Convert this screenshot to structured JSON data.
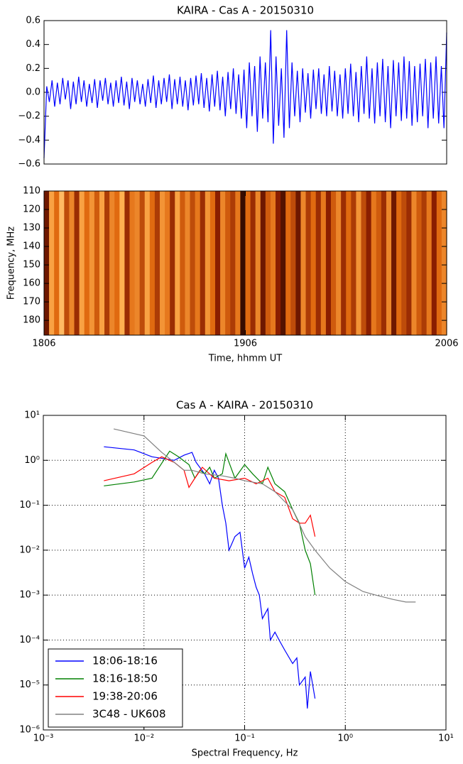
{
  "chart_data": [
    {
      "type": "line",
      "title": "KAIRA - Cas A - 20150310",
      "color": "#0000ff",
      "ylim": [
        -0.6,
        0.6
      ],
      "yticks": [
        {
          "value": -0.6,
          "label": "−0.6"
        },
        {
          "value": -0.4,
          "label": "−0.4"
        },
        {
          "value": -0.2,
          "label": "−0.2"
        },
        {
          "value": 0,
          "label": "0.0"
        },
        0.2,
        0.4,
        0.6
      ],
      "values": [
        -0.55,
        0.05,
        -0.08,
        0.1,
        -0.12,
        0.08,
        -0.1,
        0.12,
        -0.06,
        0.1,
        -0.14,
        0.09,
        -0.1,
        0.13,
        -0.08,
        0.1,
        -0.12,
        0.07,
        -0.09,
        0.11,
        -0.13,
        0.1,
        -0.07,
        0.12,
        -0.1,
        0.08,
        -0.12,
        0.1,
        -0.09,
        0.13,
        -0.11,
        0.09,
        -0.14,
        0.12,
        -0.08,
        0.1,
        -0.1,
        0.07,
        -0.12,
        0.11,
        -0.09,
        0.14,
        -0.13,
        0.1,
        -0.1,
        0.12,
        -0.08,
        0.15,
        -0.14,
        0.11,
        -0.1,
        0.13,
        -0.12,
        0.1,
        -0.15,
        0.12,
        -0.11,
        0.14,
        -0.1,
        0.16,
        -0.13,
        0.12,
        -0.16,
        0.15,
        -0.12,
        0.18,
        -0.15,
        0.13,
        -0.2,
        0.17,
        -0.14,
        0.2,
        -0.18,
        0.15,
        -0.22,
        0.19,
        -0.3,
        0.25,
        -0.2,
        0.22,
        -0.33,
        0.3,
        -0.22,
        0.25,
        -0.25,
        0.52,
        -0.43,
        0.3,
        -0.28,
        0.2,
        -0.38,
        0.52,
        -0.3,
        0.25,
        -0.2,
        0.18,
        -0.25,
        0.2,
        -0.17,
        0.16,
        -0.22,
        0.19,
        -0.14,
        0.2,
        -0.18,
        0.15,
        -0.2,
        0.22,
        -0.16,
        0.18,
        -0.2,
        0.15,
        -0.22,
        0.2,
        -0.18,
        0.24,
        -0.2,
        0.17,
        -0.25,
        0.22,
        -0.18,
        0.3,
        -0.22,
        0.2,
        -0.26,
        0.25,
        -0.2,
        0.28,
        -0.25,
        0.22,
        -0.3,
        0.27,
        -0.2,
        0.25,
        -0.24,
        0.3,
        -0.22,
        0.26,
        -0.28,
        0.22,
        -0.25,
        0.24,
        -0.2,
        0.28,
        -0.3,
        0.25,
        -0.22,
        0.3,
        -0.26,
        0.22,
        -0.3,
        0.5
      ]
    },
    {
      "type": "heatmap",
      "ylabel": "Frequency, MHz",
      "xlabel": "Time, hhmm UT",
      "colormap": [
        "#000000",
        "#8a1e00",
        "#e06a10",
        "#ffb050",
        "#ffe0b0"
      ],
      "xlim": [
        0,
        120
      ],
      "xticks": [
        {
          "value": 0,
          "label": "1806"
        },
        {
          "value": 60,
          "label": "1906"
        },
        {
          "value": 120,
          "label": "2006"
        }
      ],
      "ylim": [
        188,
        110
      ],
      "yticks": [
        110,
        120,
        130,
        140,
        150,
        160,
        170,
        180
      ],
      "values": [
        0.2,
        0.7,
        0.5,
        0.8,
        0.4,
        0.6,
        0.3,
        0.7,
        0.5,
        0.65,
        0.45,
        0.7,
        0.35,
        0.6,
        0.5,
        0.75,
        0.3,
        0.55,
        0.6,
        0.4,
        0.7,
        0.5,
        0.35,
        0.65,
        0.55,
        0.3,
        0.7,
        0.45,
        0.6,
        0.4,
        0.55,
        0.3,
        0.65,
        0.5,
        0.25,
        0.6,
        0.45,
        0.35,
        0.55,
        0.1,
        0.5,
        0.3,
        0.6,
        0.2,
        0.45,
        0.55,
        0.25,
        0.15,
        0.5,
        0.4,
        0.2,
        0.6,
        0.35,
        0.5,
        0.3,
        0.55,
        0.25,
        0.45,
        0.6,
        0.3,
        0.5,
        0.35,
        0.65,
        0.4,
        0.25,
        0.55,
        0.45,
        0.3,
        0.6,
        0.2,
        0.5,
        0.4,
        0.3,
        0.6,
        0.45,
        0.35,
        0.55,
        0.25,
        0.5,
        0.6
      ]
    },
    {
      "type": "line",
      "title": "Cas A - KAIRA - 20150310",
      "xlabel": "Spectral Frequency, Hz",
      "xlog": true,
      "ylog": true,
      "grid": true,
      "legend": "lower left",
      "xlim": [
        0.001,
        10
      ],
      "xticks": [
        {
          "value": 0.001,
          "label": "10⁻³"
        },
        {
          "value": 0.01,
          "label": "10⁻²"
        },
        {
          "value": 0.1,
          "label": "10⁻¹"
        },
        {
          "value": 1,
          "label": "10⁰"
        },
        {
          "value": 10,
          "label": "10¹"
        }
      ],
      "ylim": [
        1e-06,
        10
      ],
      "yticks": [
        {
          "value": 1e-06,
          "label": "10⁻⁶"
        },
        {
          "value": 1e-05,
          "label": "10⁻⁵"
        },
        {
          "value": 0.0001,
          "label": "10⁻⁴"
        },
        {
          "value": 0.001,
          "label": "10⁻³"
        },
        {
          "value": 0.01,
          "label": "10⁻²"
        },
        {
          "value": 0.1,
          "label": "10⁻¹"
        },
        {
          "value": 1,
          "label": "10⁰"
        },
        {
          "value": 10,
          "label": "10¹"
        }
      ],
      "series": [
        {
          "name": "18:06-18:16",
          "color": "#0000ff",
          "x": [
            0.004,
            0.008,
            0.012,
            0.02,
            0.025,
            0.03,
            0.033,
            0.04,
            0.045,
            0.05,
            0.055,
            0.06,
            0.065,
            0.07,
            0.08,
            0.09,
            0.1,
            0.11,
            0.12,
            0.13,
            0.14,
            0.15,
            0.17,
            0.18,
            0.2,
            0.22,
            0.25,
            0.3,
            0.33,
            0.35,
            0.4,
            0.42,
            0.45,
            0.5
          ],
          "values": [
            2.0,
            1.7,
            1.2,
            1.0,
            1.3,
            1.5,
            0.9,
            0.5,
            0.3,
            0.6,
            0.4,
            0.1,
            0.04,
            0.01,
            0.02,
            0.025,
            0.004,
            0.007,
            0.003,
            0.0015,
            0.001,
            0.0003,
            0.0005,
            0.0001,
            0.00015,
            0.0001,
            6e-05,
            3e-05,
            4e-05,
            1e-05,
            1.5e-05,
            3e-06,
            2e-05,
            5e-06
          ]
        },
        {
          "name": "18:16-18:50",
          "color": "#008000",
          "x": [
            0.004,
            0.008,
            0.012,
            0.018,
            0.022,
            0.028,
            0.032,
            0.036,
            0.04,
            0.045,
            0.05,
            0.06,
            0.065,
            0.07,
            0.08,
            0.1,
            0.12,
            0.15,
            0.17,
            0.2,
            0.25,
            0.3,
            0.35,
            0.4,
            0.45,
            0.5
          ],
          "values": [
            0.27,
            0.33,
            0.4,
            1.6,
            1.2,
            0.8,
            0.4,
            0.6,
            0.5,
            0.7,
            0.4,
            0.5,
            1.4,
            0.9,
            0.4,
            0.8,
            0.5,
            0.3,
            0.7,
            0.3,
            0.2,
            0.08,
            0.04,
            0.01,
            0.005,
            0.001
          ]
        },
        {
          "name": "19:38-20:06",
          "color": "#ff0000",
          "x": [
            0.004,
            0.008,
            0.012,
            0.015,
            0.02,
            0.025,
            0.028,
            0.032,
            0.038,
            0.05,
            0.07,
            0.1,
            0.13,
            0.17,
            0.2,
            0.25,
            0.3,
            0.35,
            0.4,
            0.45,
            0.5
          ],
          "values": [
            0.35,
            0.5,
            0.9,
            1.2,
            0.9,
            0.6,
            0.25,
            0.4,
            0.7,
            0.4,
            0.35,
            0.4,
            0.3,
            0.4,
            0.2,
            0.15,
            0.05,
            0.04,
            0.04,
            0.06,
            0.02
          ]
        },
        {
          "name": "3C48 - UK608",
          "color": "#808080",
          "x": [
            0.005,
            0.01,
            0.015,
            0.02,
            0.025,
            0.03,
            0.04,
            0.06,
            0.08,
            0.1,
            0.15,
            0.2,
            0.3,
            0.4,
            0.5,
            0.7,
            1,
            1.5,
            2,
            3,
            4,
            5
          ],
          "values": [
            5,
            3.5,
            1.5,
            0.9,
            0.6,
            0.6,
            0.5,
            0.45,
            0.4,
            0.35,
            0.3,
            0.2,
            0.08,
            0.02,
            0.01,
            0.004,
            0.002,
            0.0012,
            0.001,
            0.0008,
            0.0007,
            0.0007
          ]
        }
      ]
    }
  ]
}
